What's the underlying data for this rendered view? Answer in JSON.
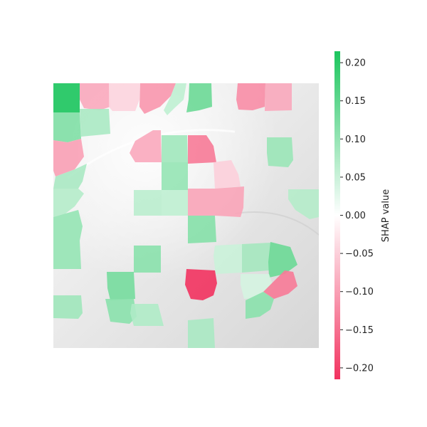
{
  "chart_data": {
    "type": "heatmap",
    "description_kind": "SHAP superpixel attribution overlay on grayscale image",
    "colormap": {
      "positive_color": "#1bc55d",
      "neutral_color": "#ffffff",
      "negative_color": "#f2325f",
      "vmin": -0.215,
      "vmax": 0.215
    },
    "colorbar": {
      "label": "SHAP value",
      "ticks": [
        -0.2,
        -0.15,
        -0.1,
        -0.05,
        0.0,
        0.05,
        0.1,
        0.15,
        0.2
      ],
      "tick_labels": [
        "−0.20",
        "−0.15",
        "−0.10",
        "−0.05",
        "0.00",
        "0.05",
        "0.10",
        "0.15",
        "0.20"
      ]
    },
    "segments": [
      {
        "id": 1,
        "value": 0.215
      },
      {
        "id": 2,
        "value": -0.09
      },
      {
        "id": 3,
        "value": -0.045
      },
      {
        "id": 4,
        "value": -0.11
      },
      {
        "id": 5,
        "value": 0.06
      },
      {
        "id": 6,
        "value": 0.14
      },
      {
        "id": 7,
        "value": -0.12
      },
      {
        "id": 8,
        "value": -0.09
      },
      {
        "id": 9,
        "value": 0.12
      },
      {
        "id": 10,
        "value": 0.08
      },
      {
        "id": 11,
        "value": -0.1
      },
      {
        "id": 12,
        "value": -0.09
      },
      {
        "id": 13,
        "value": 0.09
      },
      {
        "id": 14,
        "value": -0.14
      },
      {
        "id": 15,
        "value": 0.095
      },
      {
        "id": 16,
        "value": 0.08
      },
      {
        "id": 17,
        "value": 0.07
      },
      {
        "id": 18,
        "value": 0.1
      },
      {
        "id": 19,
        "value": -0.05
      },
      {
        "id": 20,
        "value": 0.07
      },
      {
        "id": 21,
        "value": 0.065
      },
      {
        "id": 22,
        "value": -0.095
      },
      {
        "id": 23,
        "value": -0.095
      },
      {
        "id": 24,
        "value": 0.06
      },
      {
        "id": 25,
        "value": 0.1
      },
      {
        "id": 26,
        "value": 0.115
      },
      {
        "id": 27,
        "value": 0.1
      },
      {
        "id": 28,
        "value": 0.11
      },
      {
        "id": 29,
        "value": 0.05
      },
      {
        "id": 30,
        "value": 0.085
      },
      {
        "id": 31,
        "value": 0.14
      },
      {
        "id": 32,
        "value": -0.215
      },
      {
        "id": 33,
        "value": 0.13
      },
      {
        "id": 34,
        "value": 0.04
      },
      {
        "id": 35,
        "value": -0.14
      },
      {
        "id": 36,
        "value": 0.09
      },
      {
        "id": 37,
        "value": 0.11
      },
      {
        "id": 38,
        "value": 0.075
      },
      {
        "id": 39,
        "value": 0.11
      },
      {
        "id": 40,
        "value": 0.08
      }
    ]
  }
}
